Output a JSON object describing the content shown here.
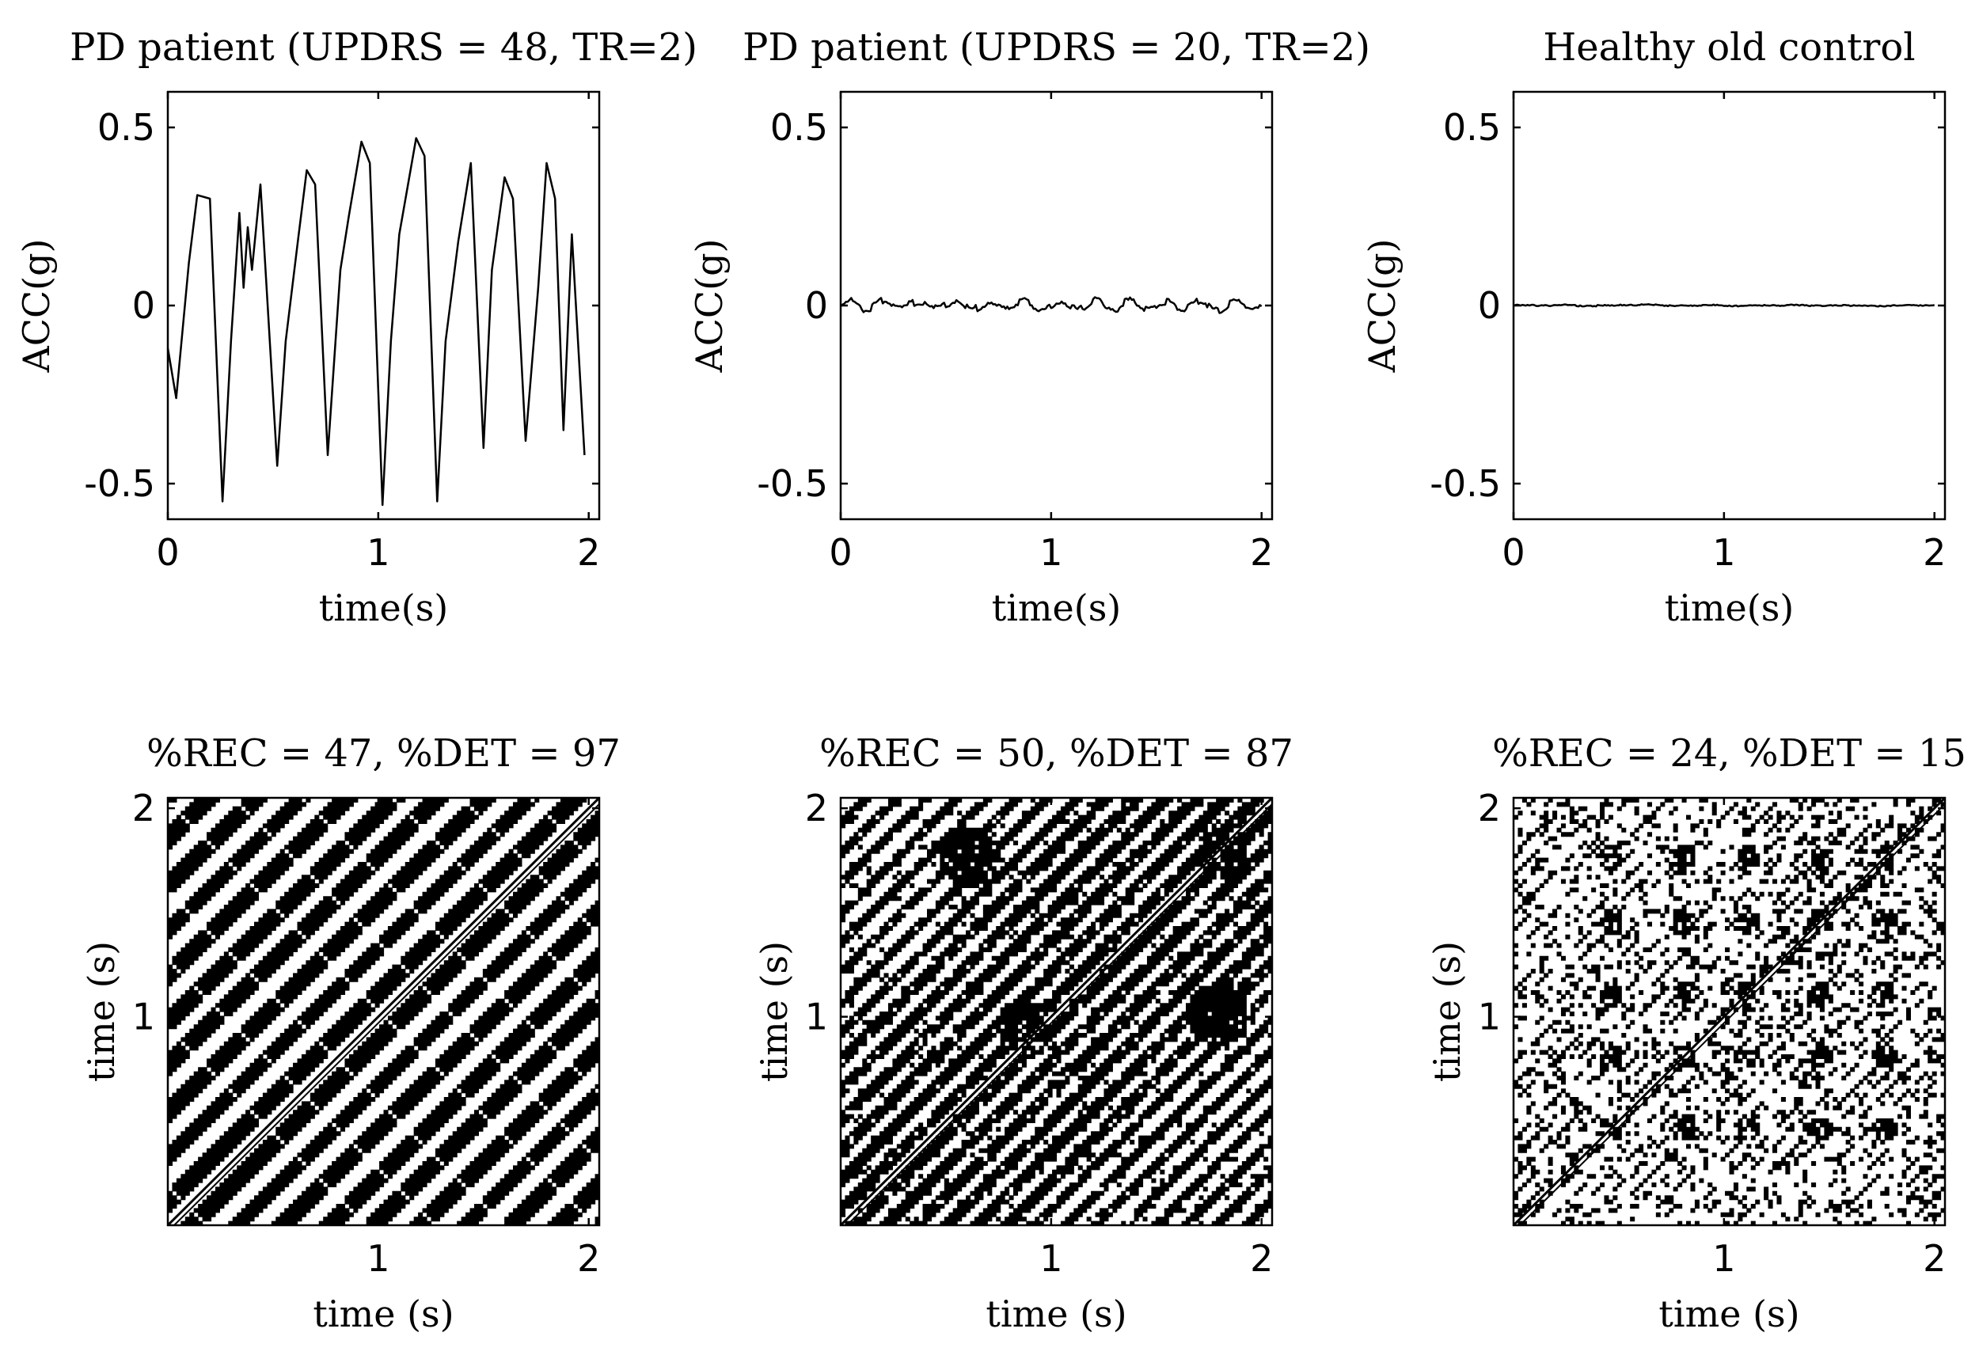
{
  "chart_data": [
    {
      "type": "line",
      "panel": "top-left",
      "title": "PD patient (UPDRS = 48, TR=2)",
      "xlabel": "time(s)",
      "ylabel": "ACC(g)",
      "xlim": [
        0,
        2.05
      ],
      "ylim": [
        -0.6,
        0.6
      ],
      "xticks": [
        0,
        1,
        2
      ],
      "xtick_labels": [
        "0",
        "1",
        "2"
      ],
      "yticks": [
        -0.5,
        0,
        0.5
      ],
      "ytick_labels": [
        "-0.5",
        "0",
        "0.5"
      ],
      "series": [
        {
          "x": [
            0,
            0.04,
            0.1,
            0.14,
            0.2,
            0.26,
            0.3,
            0.34,
            0.36,
            0.38,
            0.4,
            0.44,
            0.52,
            0.56,
            0.62,
            0.66,
            0.7,
            0.76,
            0.82,
            0.86,
            0.92,
            0.96,
            1.02,
            1.06,
            1.1,
            1.18,
            1.22,
            1.28,
            1.32,
            1.38,
            1.44,
            1.5,
            1.54,
            1.6,
            1.64,
            1.7,
            1.76,
            1.8,
            1.84,
            1.88,
            1.92,
            1.98
          ],
          "y": [
            -0.12,
            -0.26,
            0.12,
            0.31,
            0.3,
            -0.55,
            -0.1,
            0.26,
            0.05,
            0.22,
            0.1,
            0.34,
            -0.45,
            -0.1,
            0.19,
            0.38,
            0.34,
            -0.42,
            0.1,
            0.25,
            0.46,
            0.4,
            -0.56,
            -0.1,
            0.2,
            0.47,
            0.42,
            -0.55,
            -0.1,
            0.18,
            0.4,
            -0.4,
            0.1,
            0.36,
            0.3,
            -0.38,
            0.05,
            0.4,
            0.3,
            -0.35,
            0.2,
            -0.42
          ]
        }
      ]
    },
    {
      "type": "line",
      "panel": "top-middle",
      "title": "PD patient (UPDRS = 20, TR=2)",
      "xlabel": "time(s)",
      "ylabel": "ACC(g)",
      "xlim": [
        0,
        2.05
      ],
      "ylim": [
        -0.6,
        0.6
      ],
      "xticks": [
        0,
        1,
        2
      ],
      "xtick_labels": [
        "0",
        "1",
        "2"
      ],
      "yticks": [
        -0.5,
        0,
        0.5
      ],
      "ytick_labels": [
        "-0.5",
        "0",
        "0.5"
      ],
      "series": [
        {
          "x": [
            0,
            0.05,
            0.1,
            0.15,
            0.2,
            0.25,
            0.3,
            0.35,
            0.4,
            0.45,
            0.5,
            0.55,
            0.6,
            0.65,
            0.7,
            0.75,
            0.8,
            0.85,
            0.9,
            0.95,
            1.0,
            1.05,
            1.1,
            1.15,
            1.2,
            1.25,
            1.3,
            1.35,
            1.4,
            1.45,
            1.5,
            1.55,
            1.6,
            1.65,
            1.7,
            1.75,
            1.8,
            1.85,
            1.9,
            1.95,
            2.0
          ],
          "y": [
            0.0,
            0.01,
            -0.01,
            0.015,
            -0.005,
            0.01,
            0.02,
            -0.01,
            0.005,
            0.015,
            -0.01,
            0.0,
            0.012,
            -0.015,
            -0.005,
            0.01,
            0.0,
            0.015,
            -0.01,
            0.005,
            -0.012,
            -0.005,
            0.01,
            -0.008,
            0.015,
            0.0,
            -0.01,
            0.012,
            -0.005,
            0.008,
            -0.012,
            0.01,
            -0.005,
            0.012,
            -0.008,
            0.005,
            -0.01,
            0.008,
            0.0,
            0.005,
            -0.005
          ]
        }
      ]
    },
    {
      "type": "line",
      "panel": "top-right",
      "title": "Healthy old control",
      "xlabel": "time(s)",
      "ylabel": "ACC(g)",
      "xlim": [
        0,
        2.05
      ],
      "ylim": [
        -0.6,
        0.6
      ],
      "xticks": [
        0,
        1,
        2
      ],
      "xtick_labels": [
        "0",
        "1",
        "2"
      ],
      "yticks": [
        -0.5,
        0,
        0.5
      ],
      "ytick_labels": [
        "-0.5",
        "0",
        "0.5"
      ],
      "series": [
        {
          "x": [
            0,
            0.1,
            0.2,
            0.3,
            0.4,
            0.5,
            0.6,
            0.7,
            0.8,
            0.9,
            1.0,
            1.1,
            1.2,
            1.3,
            1.4,
            1.5,
            1.6,
            1.7,
            1.8,
            1.9,
            2.0
          ],
          "y": [
            0.002,
            0.0,
            0.003,
            -0.002,
            0.001,
            0.002,
            0.004,
            -0.001,
            0.0,
            0.002,
            -0.002,
            0.001,
            0.0,
            0.002,
            -0.001,
            0.001,
            0.0,
            -0.002,
            0.001,
            0.0,
            0.001
          ]
        }
      ]
    },
    {
      "type": "heatmap",
      "panel": "bottom-left",
      "title": "%REC = 47, %DET = 97",
      "xlabel": "time (s)",
      "ylabel": "time (s)",
      "xlim": [
        0,
        2.05
      ],
      "ylim": [
        0,
        2.05
      ],
      "xticks": [
        1,
        2
      ],
      "xtick_labels": [
        "1",
        "2"
      ],
      "yticks": [
        1,
        2
      ],
      "ytick_labels": [
        "1",
        "2"
      ],
      "REC": 47,
      "DET": 97,
      "colors": [
        "#000000",
        "#ffffff"
      ]
    },
    {
      "type": "heatmap",
      "panel": "bottom-middle",
      "title": "%REC = 50, %DET = 87",
      "xlabel": "time (s)",
      "ylabel": "time (s)",
      "xlim": [
        0,
        2.05
      ],
      "ylim": [
        0,
        2.05
      ],
      "xticks": [
        1,
        2
      ],
      "xtick_labels": [
        "1",
        "2"
      ],
      "yticks": [
        1,
        2
      ],
      "ytick_labels": [
        "1",
        "2"
      ],
      "REC": 50,
      "DET": 87,
      "colors": [
        "#000000",
        "#ffffff"
      ]
    },
    {
      "type": "heatmap",
      "panel": "bottom-right",
      "title": "%REC = 24, %DET = 15",
      "xlabel": "time (s)",
      "ylabel": "time (s)",
      "xlim": [
        0,
        2.05
      ],
      "ylim": [
        0,
        2.05
      ],
      "xticks": [
        1,
        2
      ],
      "xtick_labels": [
        "1",
        "2"
      ],
      "yticks": [
        1,
        2
      ],
      "ytick_labels": [
        "1",
        "2"
      ],
      "REC": 24,
      "DET": 15,
      "colors": [
        "#000000",
        "#ffffff"
      ]
    }
  ]
}
